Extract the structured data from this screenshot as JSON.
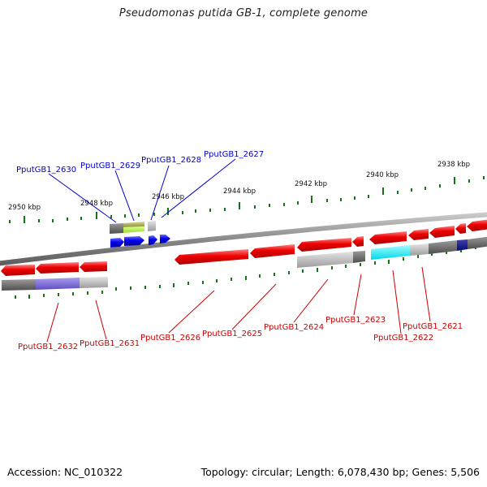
{
  "header": {
    "title": "Pseudomonas putida GB-1, complete genome"
  },
  "footer": {
    "accession": "Accession: NC_010322",
    "topology": "Topology: circular; Length: 6,078,430 bp; Genes: 5,506"
  },
  "ruler": {
    "ticks": [
      "2950 kbp",
      "2948 kbp",
      "2946 kbp",
      "2944 kbp",
      "2942 kbp",
      "2940 kbp",
      "2938 kbp"
    ]
  },
  "genes": {
    "forward": [
      "PputGB1_2630",
      "PputGB1_2629",
      "PputGB1_2628",
      "PputGB1_2627"
    ],
    "reverse": [
      "PputGB1_2632",
      "PputGB1_2631",
      "PputGB1_2626",
      "PputGB1_2625",
      "PputGB1_2624",
      "PputGB1_2623",
      "PputGB1_2622",
      "PputGB1_2621"
    ]
  },
  "colors": {
    "forward_label": "#0000cc",
    "reverse_label": "#cc0000",
    "forward_gene": "#0000ee",
    "reverse_gene": "#ee0000",
    "backbone": "#888888",
    "tick": "#117711"
  }
}
